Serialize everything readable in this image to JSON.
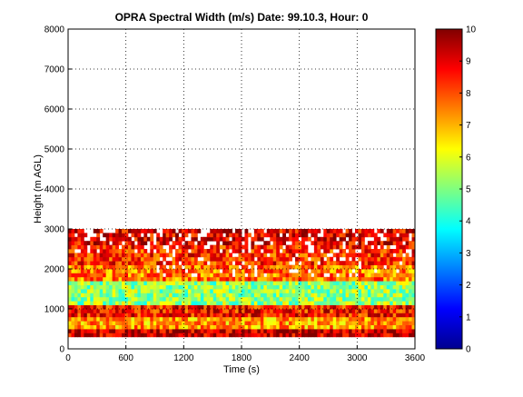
{
  "chart_data": {
    "type": "heatmap",
    "title": "OPRA Spectral Width (m/s)  Date: 99.10.3, Hour: 0",
    "xlabel": "Time (s)",
    "ylabel": "Height (m AGL)",
    "xlim": [
      0,
      3600
    ],
    "ylim": [
      0,
      8000
    ],
    "x_ticks": [
      "0",
      "600",
      "1200",
      "1800",
      "2400",
      "3000",
      "3600"
    ],
    "y_ticks": [
      "0",
      "1000",
      "2000",
      "3000",
      "4000",
      "5000",
      "6000",
      "7000",
      "8000"
    ],
    "grid": true,
    "colorbar": {
      "label_values": [
        "0",
        "1",
        "2",
        "3",
        "4",
        "5",
        "6",
        "7",
        "8",
        "9",
        "10"
      ],
      "range": [
        0,
        10
      ],
      "colormap": "jet"
    },
    "data_extent_height_m": [
      300,
      3000
    ],
    "layers": [
      {
        "height_m": [
          300,
          500
        ],
        "value": 9.3
      },
      {
        "height_m": [
          500,
          800
        ],
        "value": 7.2
      },
      {
        "height_m": [
          800,
          1100
        ],
        "value": 8.6
      },
      {
        "height_m": [
          1100,
          1650
        ],
        "value": 5.2
      },
      {
        "height_m": [
          1650,
          2100
        ],
        "value": 7.6
      },
      {
        "height_m": [
          2100,
          2600
        ],
        "value": 8.4
      },
      {
        "height_m": [
          2600,
          3000
        ],
        "value": 9.0
      }
    ]
  }
}
